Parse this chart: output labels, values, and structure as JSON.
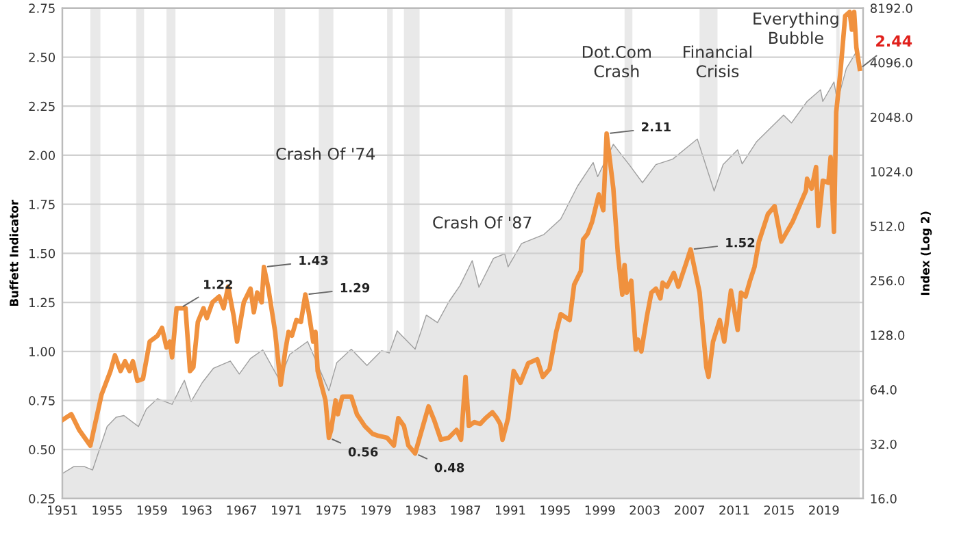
{
  "chart_data": {
    "type": "line",
    "ylabel": "Buffett Indicator",
    "y2label": "Index (Log 2)",
    "series": [
      {
        "name": null,
        "type": "area",
        "axis": "y2",
        "color": "#9e9e9e",
        "x": [
          1951.0,
          1952.0,
          1953.0,
          1953.7,
          1955.0,
          1955.8,
          1956.5,
          1957.8,
          1958.5,
          1959.5,
          1960.8,
          1961.9,
          1962.5,
          1963.5,
          1964.5,
          1966.0,
          1966.8,
          1967.8,
          1968.9,
          1970.4,
          1971.3,
          1972.9,
          1974.8,
          1975.5,
          1976.8,
          1978.2,
          1979.5,
          1980.2,
          1980.9,
          1982.5,
          1983.5,
          1984.5,
          1985.5,
          1986.5,
          1987.6,
          1988.2,
          1989.5,
          1990.5,
          1990.8,
          1992.0,
          1994.0,
          1995.5,
          1997.0,
          1998.4,
          1998.8,
          2000.2,
          2001.0,
          2001.7,
          2002.8,
          2004.0,
          2005.5,
          2007.7,
          2009.2,
          2010.0,
          2011.3,
          2011.7,
          2013.0,
          2015.4,
          2016.1,
          2017.5,
          2018.7,
          2018.9,
          2019.9,
          2020.2,
          2021.0,
          2021.9,
          2022.2
        ],
        "values": [
          22,
          24,
          24,
          23,
          40,
          45,
          46,
          40,
          50,
          57,
          53,
          72,
          55,
          70,
          84,
          92,
          78,
          95,
          106,
          72,
          100,
          118,
          63,
          90,
          107,
          87,
          105,
          102,
          135,
          107,
          165,
          150,
          195,
          240,
          330,
          235,
          340,
          360,
          305,
          410,
          460,
          560,
          850,
          1150,
          960,
          1450,
          1250,
          1100,
          890,
          1120,
          1200,
          1550,
          800,
          1120,
          1350,
          1130,
          1500,
          2100,
          1900,
          2500,
          2900,
          2500,
          3200,
          2500,
          3800,
          4700,
          3800
        ]
      },
      {
        "name": null,
        "axis": "y",
        "color": "#f0913e",
        "x": [
          1951.0,
          1951.8,
          1952.5,
          1953.5,
          1954.5,
          1955.3,
          1955.7,
          1956.2,
          1956.6,
          1957.0,
          1957.3,
          1957.7,
          1958.2,
          1958.8,
          1959.5,
          1959.9,
          1960.3,
          1960.6,
          1960.8,
          1961.2,
          1961.7,
          1962.0,
          1962.4,
          1962.7,
          1963.1,
          1963.6,
          1963.9,
          1964.4,
          1965.0,
          1965.4,
          1965.8,
          1966.3,
          1966.6,
          1967.2,
          1967.8,
          1968.1,
          1968.4,
          1968.8,
          1969.0,
          1969.4,
          1970.0,
          1970.5,
          1970.9,
          1971.2,
          1971.5,
          1971.9,
          1972.3,
          1972.7,
          1973.0,
          1973.4,
          1973.6,
          1973.8,
          1974.5,
          1974.8,
          1975.0,
          1975.4,
          1975.6,
          1976.0,
          1976.8,
          1977.3,
          1978.0,
          1978.7,
          1979.2,
          1980.0,
          1980.6,
          1981.0,
          1981.5,
          1981.9,
          1982.5,
          1983.2,
          1983.7,
          1984.2,
          1984.8,
          1985.5,
          1986.2,
          1986.6,
          1987.0,
          1987.3,
          1987.8,
          1988.3,
          1988.8,
          1989.4,
          1989.8,
          1990.1,
          1990.3,
          1990.8,
          1991.3,
          1991.9,
          1992.6,
          1993.4,
          1993.9,
          1994.5,
          1995.1,
          1995.5,
          1996.3,
          1996.7,
          1997.3,
          1997.5,
          1997.9,
          1998.3,
          1998.9,
          1999.3,
          1999.6,
          2000.2,
          2000.6,
          2001.0,
          2001.2,
          2001.4,
          2001.8,
          2002.2,
          2002.4,
          2002.7,
          2003.2,
          2003.6,
          2004.0,
          2004.4,
          2004.6,
          2005.0,
          2005.6,
          2006.0,
          2006.7,
          2007.1,
          2007.9,
          2008.5,
          2008.7,
          2009.1,
          2009.7,
          2010.1,
          2010.7,
          2011.3,
          2011.6,
          2012.0,
          2012.4,
          2012.8,
          2013.2,
          2014.0,
          2014.6,
          2015.2,
          2016.2,
          2017.4,
          2017.5,
          2017.9,
          2018.3,
          2018.5,
          2018.9,
          2019.4,
          2019.6,
          2019.9,
          2020.1,
          2020.5,
          2020.9,
          2021.3,
          2021.5,
          2021.7,
          2021.9,
          2022.2
        ],
        "values": [
          0.65,
          0.68,
          0.6,
          0.52,
          0.78,
          0.9,
          0.98,
          0.9,
          0.95,
          0.9,
          0.95,
          0.85,
          0.86,
          1.05,
          1.08,
          1.12,
          1.02,
          1.05,
          0.97,
          1.22,
          1.22,
          1.22,
          0.9,
          0.92,
          1.15,
          1.22,
          1.17,
          1.25,
          1.28,
          1.22,
          1.33,
          1.18,
          1.05,
          1.25,
          1.32,
          1.2,
          1.3,
          1.25,
          1.43,
          1.32,
          1.1,
          0.83,
          1.0,
          1.1,
          1.08,
          1.16,
          1.15,
          1.29,
          1.2,
          1.05,
          1.1,
          0.9,
          0.75,
          0.56,
          0.6,
          0.75,
          0.68,
          0.77,
          0.77,
          0.68,
          0.62,
          0.58,
          0.57,
          0.56,
          0.52,
          0.66,
          0.62,
          0.52,
          0.48,
          0.62,
          0.72,
          0.65,
          0.55,
          0.56,
          0.6,
          0.55,
          0.87,
          0.62,
          0.64,
          0.63,
          0.66,
          0.69,
          0.66,
          0.63,
          0.55,
          0.66,
          0.9,
          0.84,
          0.94,
          0.96,
          0.87,
          0.91,
          1.1,
          1.19,
          1.16,
          1.34,
          1.41,
          1.57,
          1.6,
          1.66,
          1.8,
          1.72,
          2.11,
          1.83,
          1.5,
          1.29,
          1.44,
          1.3,
          1.36,
          1.01,
          1.06,
          1.0,
          1.18,
          1.3,
          1.32,
          1.27,
          1.35,
          1.33,
          1.4,
          1.33,
          1.45,
          1.52,
          1.3,
          0.92,
          0.87,
          1.05,
          1.16,
          1.05,
          1.31,
          1.11,
          1.3,
          1.28,
          1.36,
          1.43,
          1.56,
          1.7,
          1.74,
          1.56,
          1.66,
          1.82,
          1.88,
          1.83,
          1.94,
          1.64,
          1.87,
          1.86,
          1.99,
          1.61,
          2.22,
          2.44,
          2.71,
          2.73,
          2.64,
          2.73,
          2.55,
          2.44
        ]
      }
    ],
    "bands": [
      {
        "axis": "x",
        "from": 1953.5,
        "to": 1954.4,
        "color": "#e9e9e9"
      },
      {
        "axis": "x",
        "from": 1957.6,
        "to": 1958.3,
        "color": "#e9e9e9"
      },
      {
        "axis": "x",
        "from": 1960.3,
        "to": 1961.1,
        "color": "#e9e9e9"
      },
      {
        "axis": "x",
        "from": 1969.9,
        "to": 1970.9,
        "color": "#e9e9e9"
      },
      {
        "axis": "x",
        "from": 1973.9,
        "to": 1975.2,
        "color": "#e9e9e9"
      },
      {
        "axis": "x",
        "from": 1980.0,
        "to": 1980.5,
        "color": "#e9e9e9"
      },
      {
        "axis": "x",
        "from": 1981.5,
        "to": 1982.9,
        "color": "#e9e9e9"
      },
      {
        "axis": "x",
        "from": 1990.5,
        "to": 1991.2,
        "color": "#e9e9e9"
      },
      {
        "axis": "x",
        "from": 2001.2,
        "to": 2001.9,
        "color": "#e9e9e9"
      },
      {
        "axis": "x",
        "from": 2007.9,
        "to": 2009.5,
        "color": "#e9e9e9"
      },
      {
        "axis": "x",
        "from": 2020.1,
        "to": 2020.4,
        "color": "#e9e9e9"
      }
    ],
    "annotations": [
      {
        "text": "1.22",
        "x": 1961.5,
        "y": 1.22
      },
      {
        "text": "1.43",
        "x": 1969.0,
        "y": 1.43
      },
      {
        "text": "1.29",
        "x": 1972.7,
        "y": 1.29
      },
      {
        "text": "0.56",
        "x": 1974.8,
        "y": 0.56
      },
      {
        "text": "0.48",
        "x": 1982.5,
        "y": 0.48
      },
      {
        "text": "2.11",
        "x": 1999.6,
        "y": 2.11
      },
      {
        "text": "1.52",
        "x": 2007.1,
        "y": 1.52
      },
      {
        "text": "2.44",
        "x": 2022.2,
        "y": 2.44
      },
      "Crash Of '74",
      "Crash Of '87",
      "Dot.Com\nCrash",
      "Financial\nCrisis",
      "Everything\nBubble"
    ],
    "xlim": [
      1951,
      2022.5
    ],
    "xticks": [
      1951,
      1955,
      1959,
      1963,
      1967,
      1971,
      1975,
      1979,
      1983,
      1987,
      1991,
      1995,
      1999,
      2003,
      2007,
      2011,
      2015,
      2019
    ],
    "ylim": [
      0.25,
      2.75
    ],
    "yticks": [
      0.25,
      {
        "value": 0.5,
        "label": "0.50"
      },
      0.75,
      {
        "value": 1,
        "label": "1.00"
      },
      1.25,
      {
        "value": 1.5,
        "label": "1.50"
      },
      1.75,
      {
        "value": 2,
        "label": "2.00"
      },
      2.25,
      {
        "value": 2.5,
        "label": "2.50"
      },
      2.75
    ],
    "y2lim": [
      16,
      8192
    ],
    "y2ticks": [
      {
        "value": 16,
        "label": "16.0"
      },
      {
        "value": 32,
        "label": "32.0"
      },
      {
        "value": 64,
        "label": "64.0"
      },
      {
        "value": 128,
        "label": "128.0"
      },
      {
        "value": 256,
        "label": "256.0"
      },
      {
        "value": 512,
        "label": "512.0"
      },
      {
        "value": 1024,
        "label": "1024.0"
      },
      {
        "value": 2048,
        "label": "2048.0"
      },
      {
        "value": 4096,
        "label": "4096.0"
      },
      {
        "value": 8192,
        "label": "8192.0"
      }
    ],
    "log": "y2",
    "grid": "y",
    "legend": false
  }
}
